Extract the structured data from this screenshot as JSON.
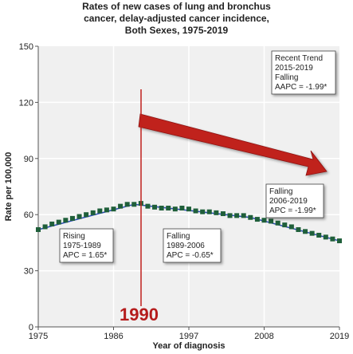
{
  "chart_data": {
    "type": "scatter",
    "title_lines": [
      "Rates of new cases of lung and bronchus",
      "cancer, delay-adjusted cancer incidence,",
      "Both Sexes,  1975-2019"
    ],
    "xlabel": "Year of diagnosis",
    "ylabel": "Rate per 100,000",
    "xlim": [
      1975,
      2019
    ],
    "ylim": [
      0,
      150
    ],
    "x_ticks": [
      1975,
      1986,
      1997,
      2008,
      2019
    ],
    "y_ticks": [
      0,
      30,
      60,
      90,
      120,
      150
    ],
    "grid": true,
    "series": [
      {
        "color": "#1f5f3a",
        "x": [
          1975,
          1976,
          1977,
          1978,
          1979,
          1980,
          1981,
          1982,
          1983,
          1984,
          1985,
          1986,
          1987,
          1988,
          1989,
          1990,
          1991,
          1992,
          1993,
          1994,
          1995,
          1996,
          1997,
          1998,
          1999,
          2000,
          2001,
          2002,
          2003,
          2004,
          2005,
          2006,
          2007,
          2008,
          2009,
          2010,
          2011,
          2012,
          2013,
          2014,
          2015,
          2016,
          2017,
          2018,
          2019
        ],
        "values": [
          52.0,
          53.5,
          55.0,
          56.0,
          57.0,
          58.0,
          59.0,
          60.0,
          61.0,
          62.0,
          62.5,
          63.0,
          64.5,
          65.5,
          65.5,
          66.0,
          64.5,
          64.0,
          63.5,
          63.5,
          63.0,
          63.5,
          63.0,
          62.0,
          61.5,
          61.5,
          61.0,
          60.5,
          59.5,
          59.5,
          59.5,
          58.5,
          57.5,
          57.0,
          56.5,
          55.5,
          54.5,
          53.5,
          52.0,
          51.0,
          50.0,
          49.0,
          48.0,
          47.0,
          46.0
        ]
      }
    ],
    "annotations": {
      "rising": [
        "Rising",
        "1975-1989",
        "APC =  1.65*"
      ],
      "falling1": [
        "Falling",
        "1989-2006",
        "APC = -0.65*"
      ],
      "falling2": [
        "Falling",
        "2006-2019",
        "APC = -1.99*"
      ],
      "recent": [
        "Recent Trend",
        "2015-2019",
        "Falling",
        "AAPC = -1.99*"
      ],
      "marker_year": 1990,
      "marker_label": "1990"
    },
    "colors": {
      "marker": "#1f5f3a",
      "fit_line": "#2a4bb5",
      "highlight": "#c0201c",
      "plot_bg": "#f0f0f0"
    }
  }
}
